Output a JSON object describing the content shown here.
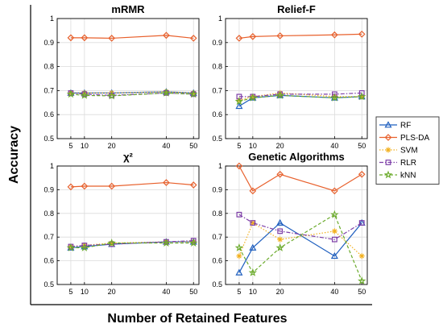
{
  "figure": {
    "ylabel": "Accuracy",
    "xlabel": "Number of Retained Features"
  },
  "legend": {
    "placement": "right",
    "entries": [
      {
        "name": "RF",
        "color": "#1f5fbf",
        "marker": "triangle",
        "dash": "solid"
      },
      {
        "name": "PLS-DA",
        "color": "#e8602c",
        "marker": "diamond",
        "dash": "solid"
      },
      {
        "name": "SVM",
        "color": "#f2b01e",
        "marker": "asterisk",
        "dash": "dotted"
      },
      {
        "name": "RLR",
        "color": "#7e3fa8",
        "marker": "square",
        "dash": "dashdot"
      },
      {
        "name": "kNN",
        "color": "#6aaa2a",
        "marker": "star",
        "dash": "dashed"
      }
    ]
  },
  "chart_data": [
    {
      "type": "line",
      "title": "mRMR",
      "x": [
        5,
        10,
        20,
        40,
        50
      ],
      "xticks": [
        "5",
        "10",
        "20",
        "40",
        "50"
      ],
      "ylim": [
        0.5,
        1
      ],
      "yticks": [
        "0.5",
        "0.6",
        "0.7",
        "0.8",
        "0.9",
        "1"
      ],
      "grid": true,
      "series": [
        {
          "name": "RF",
          "values": [
            0.69,
            0.69,
            0.69,
            0.695,
            0.69
          ]
        },
        {
          "name": "PLS-DA",
          "values": [
            0.92,
            0.92,
            0.918,
            0.93,
            0.918
          ]
        },
        {
          "name": "SVM",
          "values": [
            0.69,
            0.69,
            0.69,
            0.695,
            0.69
          ]
        },
        {
          "name": "RLR",
          "values": [
            0.69,
            0.685,
            0.68,
            0.69,
            0.685
          ]
        },
        {
          "name": "kNN",
          "values": [
            0.685,
            0.68,
            0.678,
            0.69,
            0.685
          ]
        }
      ]
    },
    {
      "type": "line",
      "title": "Relief-F",
      "x": [
        5,
        10,
        20,
        40,
        50
      ],
      "xticks": [
        "5",
        "10",
        "20",
        "40",
        "50"
      ],
      "ylim": [
        0.5,
        1
      ],
      "yticks": [
        "0.5",
        "0.6",
        "0.7",
        "0.8",
        "0.9",
        "1"
      ],
      "grid": true,
      "series": [
        {
          "name": "RF",
          "values": [
            0.635,
            0.67,
            0.68,
            0.67,
            0.675
          ]
        },
        {
          "name": "PLS-DA",
          "values": [
            0.918,
            0.925,
            0.928,
            0.932,
            0.935
          ]
        },
        {
          "name": "SVM",
          "values": [
            0.66,
            0.675,
            0.69,
            0.675,
            0.675
          ]
        },
        {
          "name": "RLR",
          "values": [
            0.675,
            0.675,
            0.685,
            0.685,
            0.69
          ]
        },
        {
          "name": "kNN",
          "values": [
            0.655,
            0.67,
            0.68,
            0.67,
            0.675
          ]
        }
      ]
    },
    {
      "type": "line",
      "title": "χ²",
      "x": [
        5,
        10,
        20,
        40,
        50
      ],
      "xticks": [
        "5",
        "10",
        "20",
        "40",
        "50"
      ],
      "ylim": [
        0.5,
        1
      ],
      "yticks": [
        "0.5",
        "0.6",
        "0.7",
        "0.8",
        "0.9",
        "1"
      ],
      "grid": true,
      "series": [
        {
          "name": "RF",
          "values": [
            0.655,
            0.66,
            0.67,
            0.68,
            0.68
          ]
        },
        {
          "name": "PLS-DA",
          "values": [
            0.912,
            0.915,
            0.915,
            0.93,
            0.92
          ]
        },
        {
          "name": "SVM",
          "values": [
            0.66,
            0.665,
            0.675,
            0.68,
            0.68
          ]
        },
        {
          "name": "RLR",
          "values": [
            0.66,
            0.665,
            0.67,
            0.68,
            0.685
          ]
        },
        {
          "name": "kNN",
          "values": [
            0.655,
            0.655,
            0.675,
            0.675,
            0.675
          ]
        }
      ]
    },
    {
      "type": "line",
      "title": "Genetic Algorithms",
      "x": [
        5,
        10,
        20,
        40,
        50
      ],
      "xticks": [
        "5",
        "10",
        "20",
        "40",
        "50"
      ],
      "ylim": [
        0.5,
        1
      ],
      "yticks": [
        "0.5",
        "0.6",
        "0.7",
        "0.8",
        "0.9",
        "1"
      ],
      "grid": true,
      "series": [
        {
          "name": "RF",
          "values": [
            0.55,
            0.655,
            0.76,
            0.62,
            0.76
          ]
        },
        {
          "name": "PLS-DA",
          "values": [
            1.0,
            0.895,
            0.965,
            0.895,
            0.965
          ]
        },
        {
          "name": "SVM",
          "values": [
            0.62,
            0.76,
            0.69,
            0.725,
            0.62
          ]
        },
        {
          "name": "RLR",
          "values": [
            0.795,
            0.76,
            0.725,
            0.69,
            0.76
          ]
        },
        {
          "name": "kNN",
          "values": [
            0.655,
            0.55,
            0.655,
            0.795,
            0.515
          ]
        }
      ]
    }
  ]
}
